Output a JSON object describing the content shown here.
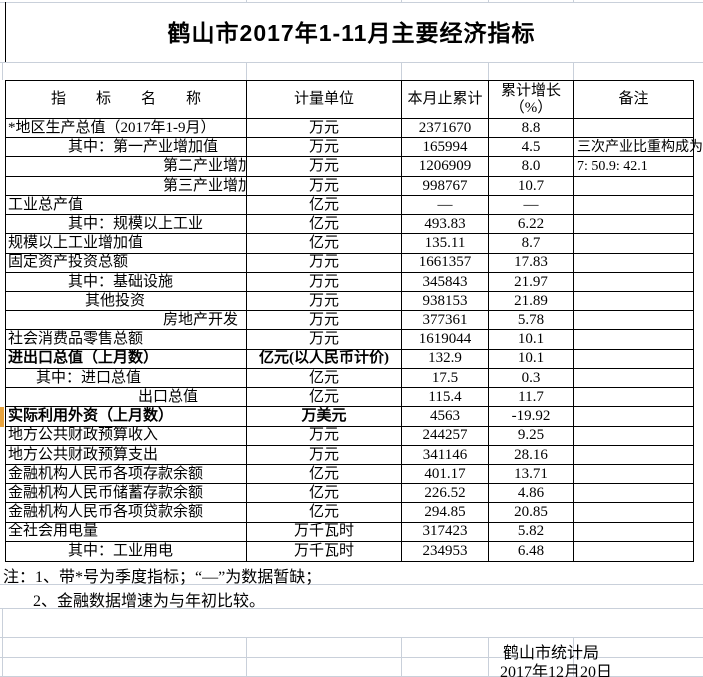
{
  "title": "鹤山市2017年1-11月主要经济指标",
  "header": {
    "indicator": "指　　标　　名　　称",
    "unit": "计量单位",
    "cumulative": "本月止累计",
    "growth_line1": "累计增长",
    "growth_line2": "（%）",
    "remark": "备注"
  },
  "rows": [
    {
      "label": "*地区生产总值（2017年1-9月）",
      "unit": "万元",
      "value": "2371670",
      "growth": "8.8",
      "remark": "",
      "indent": 2,
      "bold": false,
      "clip": false
    },
    {
      "label": "其中：第一产业增加值",
      "unit": "万元",
      "value": "165994",
      "growth": "4.5",
      "remark": "三次产业比重构成为：",
      "indent": 62,
      "bold": false,
      "clip": false
    },
    {
      "label": "第二产业增加值",
      "unit": "万元",
      "value": "1206909",
      "growth": "8.0",
      "remark": "7: 50.9: 42.1",
      "indent": 157,
      "bold": false,
      "clip": true
    },
    {
      "label": "第三产业增加值",
      "unit": "万元",
      "value": "998767",
      "growth": "10.7",
      "remark": "",
      "indent": 157,
      "bold": false,
      "clip": true
    },
    {
      "label": "工业总产值",
      "unit": "亿元",
      "value": "—",
      "growth": "—",
      "remark": "",
      "indent": 2,
      "bold": false,
      "clip": false
    },
    {
      "label": "其中：规模以上工业",
      "unit": "亿元",
      "value": "493.83",
      "growth": "6.22",
      "remark": "",
      "indent": 62,
      "bold": false,
      "clip": false
    },
    {
      "label": "规模以上工业增加值",
      "unit": "亿元",
      "value": "135.11",
      "growth": "8.7",
      "remark": "",
      "indent": 2,
      "bold": false,
      "clip": false
    },
    {
      "label": "固定资产投资总额",
      "unit": "万元",
      "value": "1661357",
      "growth": "17.83",
      "remark": "",
      "indent": 2,
      "bold": false,
      "clip": false
    },
    {
      "label": "其中：基础设施",
      "unit": "万元",
      "value": "345843",
      "growth": "21.97",
      "remark": "",
      "indent": 62,
      "bold": false,
      "clip": false
    },
    {
      "label": "其他投资",
      "unit": "万元",
      "value": "938153",
      "growth": "21.89",
      "remark": "",
      "indent": 79,
      "bold": false,
      "clip": false
    },
    {
      "label": "房地产开发",
      "unit": "万元",
      "value": "377361",
      "growth": "5.78",
      "remark": "",
      "indent": 157,
      "bold": false,
      "clip": false
    },
    {
      "label": "社会消费品零售总额",
      "unit": "万元",
      "value": "1619044",
      "growth": "10.1",
      "remark": "",
      "indent": 2,
      "bold": false,
      "clip": false
    },
    {
      "label": "进出口总值（上月数）",
      "unit": "亿元(以人民币计价)",
      "value": "132.9",
      "growth": "10.1",
      "remark": "",
      "indent": 2,
      "bold": true,
      "clip": false
    },
    {
      "label": "其中：进口总值",
      "unit": "亿元",
      "value": "17.5",
      "growth": "0.3",
      "remark": "",
      "indent": 30,
      "bold": false,
      "clip": false
    },
    {
      "label": "出口总值",
      "unit": "亿元",
      "value": "115.4",
      "growth": "11.7",
      "remark": "",
      "indent": 132,
      "bold": false,
      "clip": false
    },
    {
      "label": "实际利用外资（上月数）",
      "unit": "万美元",
      "value": "4563",
      "growth": "-19.92",
      "remark": "",
      "indent": 2,
      "bold": true,
      "clip": false
    },
    {
      "label": "地方公共财政预算收入",
      "unit": "万元",
      "value": "244257",
      "growth": "9.25",
      "remark": "",
      "indent": 2,
      "bold": false,
      "clip": false
    },
    {
      "label": "地方公共财政预算支出",
      "unit": "万元",
      "value": "341146",
      "growth": "28.16",
      "remark": "",
      "indent": 2,
      "bold": false,
      "clip": false
    },
    {
      "label": "金融机构人民币各项存款余额",
      "unit": "亿元",
      "value": "401.17",
      "growth": "13.71",
      "remark": "",
      "indent": 2,
      "bold": false,
      "clip": false
    },
    {
      "label": "金融机构人民币储蓄存款余额",
      "unit": "亿元",
      "value": "226.52",
      "growth": "4.86",
      "remark": "",
      "indent": 2,
      "bold": false,
      "clip": false
    },
    {
      "label": "金融机构人民币各项贷款余额",
      "unit": "亿元",
      "value": "294.85",
      "growth": "20.85",
      "remark": "",
      "indent": 2,
      "bold": false,
      "clip": false
    },
    {
      "label": "全社会用电量",
      "unit": "万千瓦时",
      "value": "317423",
      "growth": "5.82",
      "remark": "",
      "indent": 2,
      "bold": false,
      "clip": false
    },
    {
      "label": "其中：工业用电",
      "unit": "万千瓦时",
      "value": "234953",
      "growth": "6.48",
      "remark": "",
      "indent": 62,
      "bold": false,
      "clip": false
    }
  ],
  "notes": [
    "注：1、带*号为季度指标；“—”为数据暂缺；",
    "2、金融数据增速为与年初比较。"
  ],
  "footer": {
    "org": "鹤山市统计局",
    "date": "2017年12月20日"
  },
  "colors": {
    "border": "#000000",
    "gridline": "#c9d0da",
    "marker_orange": "#E8A33C",
    "background": "#ffffff"
  }
}
